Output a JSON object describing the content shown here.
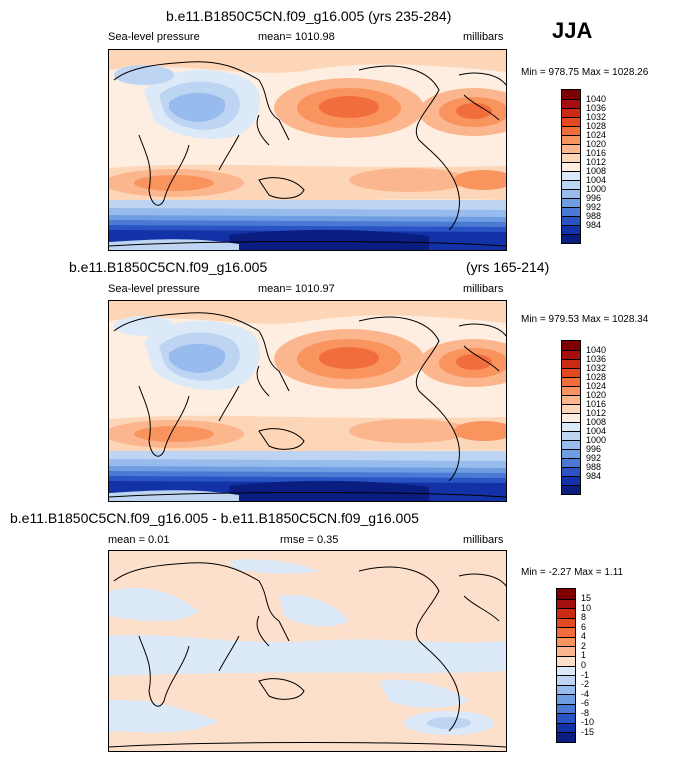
{
  "season": "JJA",
  "chart_data": [
    {
      "type": "heatmap",
      "title": "b.e11.B1850C5CN.f09_g16.005 (yrs 235-284)",
      "variable": "Sea-level pressure",
      "mean_text": "mean= 1010.98",
      "units": "millibars",
      "minmax_text": "Min = 978.75 Max = 1028.26",
      "min": 978.75,
      "max": 1028.26,
      "mean": 1010.98,
      "levels": [
        "1040",
        "1036",
        "1032",
        "1028",
        "1024",
        "1020",
        "1016",
        "1012",
        "1008",
        "1004",
        "1000",
        "996",
        "992",
        "988",
        "984"
      ],
      "colors": [
        "#7f0000",
        "#a50f0f",
        "#cb2a14",
        "#e34a22",
        "#f26d3c",
        "#f9945f",
        "#fbb68e",
        "#fdd6b8",
        "#fdeee1",
        "#dbe9f8",
        "#bdd5f3",
        "#96bbec",
        "#6e9de2",
        "#4a7ad4",
        "#2a54c4",
        "#1332a8",
        "#0a1e82"
      ]
    },
    {
      "type": "heatmap",
      "title_left": "b.e11.B1850C5CN.f09_g16.005",
      "title_right": "(yrs 165-214)",
      "variable": "Sea-level pressure",
      "mean_text": "mean= 1010.97",
      "units": "millibars",
      "minmax_text": "Min = 979.53 Max = 1028.34",
      "min": 979.53,
      "max": 1028.34,
      "mean": 1010.97,
      "levels": [
        "1040",
        "1036",
        "1032",
        "1028",
        "1024",
        "1020",
        "1016",
        "1012",
        "1008",
        "1004",
        "1000",
        "996",
        "992",
        "988",
        "984"
      ],
      "colors": [
        "#7f0000",
        "#a50f0f",
        "#cb2a14",
        "#e34a22",
        "#f26d3c",
        "#f9945f",
        "#fbb68e",
        "#fdd6b8",
        "#fdeee1",
        "#dbe9f8",
        "#bdd5f3",
        "#96bbec",
        "#6e9de2",
        "#4a7ad4",
        "#2a54c4",
        "#1332a8",
        "#0a1e82"
      ]
    },
    {
      "type": "heatmap",
      "title": "b.e11.B1850C5CN.f09_g16.005 - b.e11.B1850C5CN.f09_g16.005",
      "mean_text": "mean =   0.01",
      "rmse_text": "rmse =   0.35",
      "units": "millibars",
      "minmax_text": "Min =  -2.27 Max =   1.11",
      "min": -2.27,
      "max": 1.11,
      "mean": 0.01,
      "rmse": 0.35,
      "levels": [
        "15",
        "10",
        "8",
        "6",
        "4",
        "2",
        "1",
        "0",
        "-1",
        "-2",
        "-4",
        "-6",
        "-8",
        "-10",
        "-15"
      ],
      "colors": [
        "#7f0000",
        "#a50f0f",
        "#cb2a14",
        "#e34a22",
        "#f26d3c",
        "#f9945f",
        "#fbb68e",
        "#fde0cc",
        "#dbe9f8",
        "#bdd5f3",
        "#96bbec",
        "#6e9de2",
        "#4a7ad4",
        "#2a54c4",
        "#1332a8",
        "#0a1e82"
      ]
    }
  ]
}
